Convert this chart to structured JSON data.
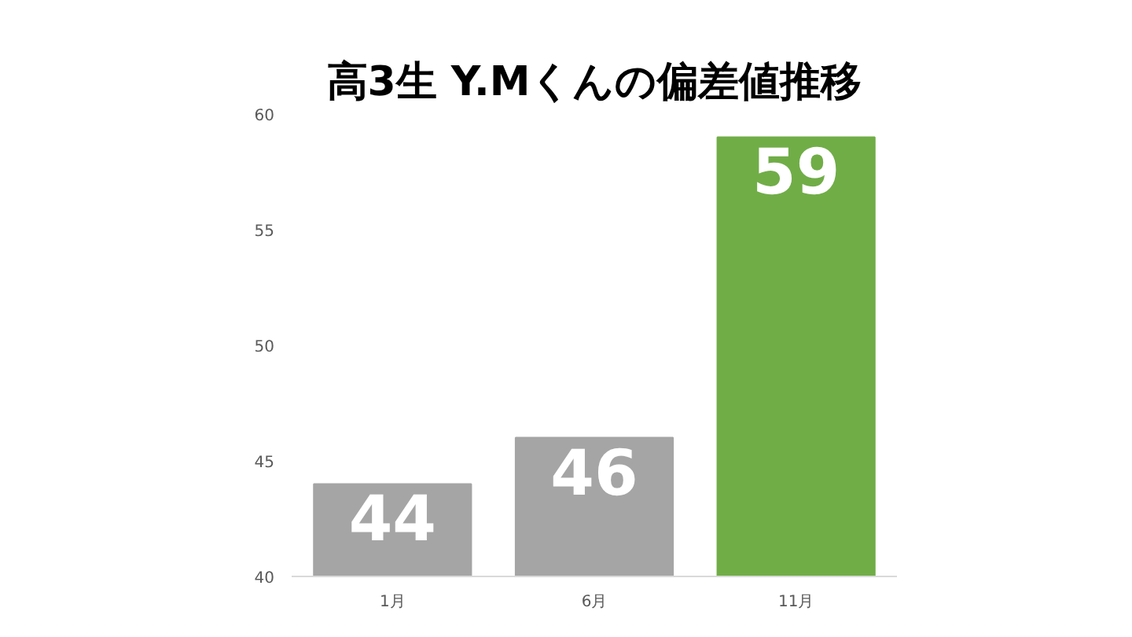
{
  "chart_data": {
    "type": "bar",
    "title": "高3生 Y.Mくんの偏差値推移",
    "categories": [
      "1月",
      "6月",
      "11月"
    ],
    "values": [
      44,
      46,
      59
    ],
    "colors": [
      "#a5a5a5",
      "#a5a5a5",
      "#70ad47"
    ],
    "ylim": [
      40,
      60
    ],
    "yticks": [
      40,
      45,
      50,
      55,
      60
    ],
    "grid": false,
    "data_labels": true
  }
}
